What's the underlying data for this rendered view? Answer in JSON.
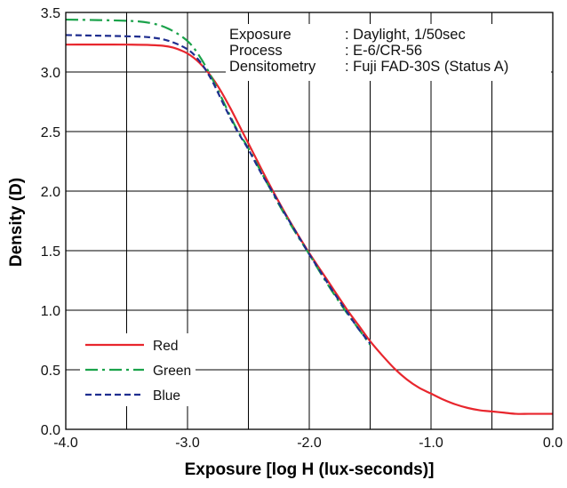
{
  "chart_data": {
    "type": "line",
    "title": "",
    "xlabel": "Exposure [log H (lux-seconds)]",
    "ylabel": "Density (D)",
    "xlim": [
      -4.0,
      0.0
    ],
    "ylim": [
      0.0,
      3.5
    ],
    "grid": true,
    "x_ticks": [
      -4.0,
      -3.5,
      -3.0,
      -2.5,
      -2.0,
      -1.5,
      -1.0,
      -0.5,
      0.0
    ],
    "x_tick_labels": [
      "-4.0",
      "",
      "-3.0",
      "",
      "-2.0",
      "",
      "-1.0",
      "",
      "0.0"
    ],
    "y_ticks": [
      0.0,
      0.5,
      1.0,
      1.5,
      2.0,
      2.5,
      3.0,
      3.5
    ],
    "y_tick_labels": [
      "0.0",
      "0.5",
      "1.0",
      "1.5",
      "2.0",
      "2.5",
      "3.0",
      "3.5"
    ],
    "annotations": [
      {
        "label": "Exposure",
        "value": ": Daylight, 1/50sec"
      },
      {
        "label": "Process",
        "value": ": E-6/CR-56"
      },
      {
        "label": "Densitometry",
        "value": ": Fuji FAD-30S (Status A)"
      }
    ],
    "legend_placement": "bottom-left",
    "series": [
      {
        "name": "Red",
        "color": "#e8262d",
        "dash": "solid",
        "x": [
          -4.0,
          -3.5,
          -3.2,
          -3.05,
          -2.95,
          -2.85,
          -2.75,
          -2.65,
          -2.55,
          -2.45,
          -2.35,
          -2.25,
          -2.15,
          -2.0,
          -1.85,
          -1.7,
          -1.6,
          -1.5,
          -1.4,
          -1.3,
          -1.2,
          -1.1,
          -1.0,
          -0.9,
          -0.8,
          -0.7,
          -0.6,
          -0.5,
          -0.4,
          -0.3,
          -0.2,
          -0.1,
          0.0
        ],
        "y": [
          3.23,
          3.23,
          3.22,
          3.18,
          3.12,
          3.02,
          2.88,
          2.7,
          2.5,
          2.3,
          2.1,
          1.91,
          1.73,
          1.48,
          1.25,
          1.02,
          0.88,
          0.74,
          0.62,
          0.51,
          0.42,
          0.35,
          0.3,
          0.25,
          0.21,
          0.18,
          0.16,
          0.15,
          0.14,
          0.13,
          0.13,
          0.13,
          0.13
        ]
      },
      {
        "name": "Green",
        "color": "#1aa24a",
        "dash": "dashdot",
        "x": [
          -4.0,
          -3.5,
          -3.3,
          -3.15,
          -3.0,
          -2.9,
          -2.8,
          -2.7,
          -2.6,
          -2.5,
          -2.4,
          -2.3,
          -2.2,
          -2.1,
          -2.0,
          -1.9,
          -1.8,
          -1.7,
          -1.6,
          -1.5
        ],
        "y": [
          3.44,
          3.43,
          3.41,
          3.36,
          3.26,
          3.13,
          2.95,
          2.74,
          2.53,
          2.36,
          2.17,
          1.98,
          1.8,
          1.63,
          1.47,
          1.3,
          1.14,
          0.99,
          0.85,
          0.71
        ]
      },
      {
        "name": "Blue",
        "color": "#1f2e8f",
        "dash": "dashed",
        "x": [
          -4.0,
          -3.5,
          -3.3,
          -3.15,
          -3.0,
          -2.9,
          -2.8,
          -2.7,
          -2.6,
          -2.5,
          -2.4,
          -2.3,
          -2.2,
          -2.1,
          -2.0,
          -1.9,
          -1.8,
          -1.7,
          -1.6,
          -1.5
        ],
        "y": [
          3.31,
          3.3,
          3.29,
          3.26,
          3.19,
          3.09,
          2.93,
          2.72,
          2.52,
          2.35,
          2.16,
          1.99,
          1.81,
          1.64,
          1.47,
          1.31,
          1.15,
          1.0,
          0.85,
          0.72
        ]
      }
    ]
  }
}
